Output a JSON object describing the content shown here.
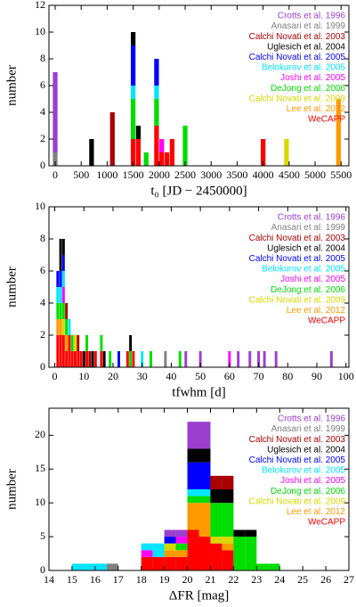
{
  "chart_data": [
    {
      "type": "bar",
      "stacked": true,
      "xlabel": "t₀ [JD − 2450000]",
      "ylabel": "number",
      "x": [
        0,
        700,
        1100,
        1500,
        1600,
        1750,
        1950,
        2050,
        2150,
        2250,
        2500,
        4000,
        4450,
        5450
      ],
      "xlim": [
        -120,
        5650
      ],
      "xticks": [
        0,
        500,
        1000,
        1500,
        2000,
        2500,
        3000,
        3500,
        4000,
        4500,
        5000,
        5500
      ],
      "ylim": [
        0,
        12
      ],
      "yticks": [
        0,
        2,
        4,
        6,
        8,
        10,
        12
      ],
      "series": [
        {
          "name": "Crotts et al. 1996",
          "color": "#9a3fd0",
          "values": [
            6,
            0,
            0,
            0,
            0,
            0,
            0,
            0,
            0,
            0,
            0,
            0,
            0,
            0
          ]
        },
        {
          "name": "Anasari et al. 1999",
          "color": "#808080",
          "values": [
            1,
            0,
            0,
            0,
            0,
            0,
            0,
            0,
            0,
            0,
            0,
            0,
            0,
            0
          ]
        },
        {
          "name": "Calchi Novati et al. 2003",
          "color": "#aa0000",
          "values": [
            0,
            0,
            4,
            0,
            0,
            0,
            0,
            0,
            0,
            0,
            0,
            0,
            0,
            0
          ]
        },
        {
          "name": "Uglesich et al. 2004",
          "color": "#000000",
          "values": [
            0,
            2,
            0,
            1,
            1,
            0,
            0,
            0,
            0,
            0,
            0,
            0,
            0,
            0
          ]
        },
        {
          "name": "Calchi Novati et al. 2005",
          "color": "#0000ff",
          "values": [
            0,
            0,
            0,
            3,
            0,
            0,
            2,
            0,
            0,
            0,
            0,
            0,
            0,
            0
          ]
        },
        {
          "name": "Belokurov et al. 2005",
          "color": "#00e5ff",
          "values": [
            0,
            0,
            0,
            1,
            0,
            0,
            1,
            0,
            0,
            0,
            0,
            0,
            0,
            0
          ]
        },
        {
          "name": "Joshi et al. 2005",
          "color": "#ff00ff",
          "values": [
            0,
            0,
            0,
            0,
            0,
            0,
            0,
            1,
            0,
            0,
            0,
            0,
            0,
            0
          ]
        },
        {
          "name": "DeJong et al. 2006",
          "color": "#00dd00",
          "values": [
            0,
            0,
            0,
            3,
            0,
            1,
            2,
            0,
            0,
            0,
            3,
            0,
            0,
            0
          ]
        },
        {
          "name": "Calchi Novati et al. 2009",
          "color": "#d8d800",
          "values": [
            0,
            0,
            0,
            0,
            0,
            0,
            0,
            0,
            0,
            0,
            0,
            0,
            2,
            0
          ]
        },
        {
          "name": "Lee et al. 2012",
          "color": "#ff9900",
          "values": [
            0,
            0,
            0,
            0,
            0,
            0,
            0,
            0,
            0,
            0,
            0,
            0,
            0,
            5
          ]
        },
        {
          "name": "WeCAPP",
          "color": "#ff0000",
          "values": [
            0,
            0,
            0,
            2,
            2,
            0,
            3,
            1,
            1,
            2,
            0,
            2,
            0,
            0
          ]
        }
      ]
    },
    {
      "type": "bar",
      "stacked": true,
      "xlabel": "tfwhm [d]",
      "ylabel": "number",
      "x": [
        1,
        2,
        3,
        4,
        5,
        6,
        7,
        8,
        9,
        10,
        11,
        12,
        13,
        14,
        16,
        17,
        19,
        22,
        25,
        26,
        27,
        30,
        33,
        38,
        43,
        45,
        50,
        60,
        63,
        67,
        70,
        72,
        76,
        95
      ],
      "xlim": [
        -2,
        101
      ],
      "xticks": [
        0,
        10,
        20,
        30,
        40,
        50,
        60,
        70,
        80,
        90,
        100
      ],
      "ylim": [
        0,
        10
      ],
      "yticks": [
        0,
        2,
        4,
        6,
        8,
        10
      ],
      "series": [
        {
          "name": "Crotts et al. 1996",
          "color": "#9a3fd0",
          "values": [
            0,
            0,
            0,
            0,
            0,
            0,
            0,
            0,
            0,
            0,
            0,
            0,
            0,
            0,
            0,
            0,
            0,
            0,
            0,
            0,
            0,
            0,
            0,
            0,
            0,
            1,
            1,
            0,
            1,
            1,
            1,
            1,
            1,
            1
          ]
        },
        {
          "name": "Anasari et al. 1999",
          "color": "#808080",
          "values": [
            0,
            0,
            0,
            0,
            0,
            0,
            0,
            0,
            0,
            0,
            0,
            0,
            0,
            0,
            0,
            0,
            0,
            0,
            0,
            0,
            0,
            0,
            0,
            1,
            0,
            0,
            0,
            0,
            0,
            0,
            0,
            0,
            0,
            0
          ]
        },
        {
          "name": "Calchi Novati et al. 2003",
          "color": "#aa0000",
          "values": [
            0,
            0,
            0,
            1,
            0,
            0,
            0,
            1,
            0,
            0,
            0,
            1,
            0,
            0,
            0,
            0,
            0,
            0,
            0,
            0,
            0,
            0,
            0,
            0,
            0,
            0,
            0,
            0,
            0,
            0,
            0,
            0,
            0,
            0
          ]
        },
        {
          "name": "Uglesich et al. 2004",
          "color": "#000000",
          "values": [
            0,
            2,
            1,
            0,
            0,
            0,
            0,
            0,
            0,
            1,
            0,
            0,
            1,
            0,
            0,
            1,
            0,
            0,
            0,
            1,
            0,
            0,
            0,
            0,
            0,
            0,
            0,
            0,
            0,
            0,
            0,
            0,
            0,
            0
          ]
        },
        {
          "name": "Calchi Novati et al. 2005",
          "color": "#0000ff",
          "values": [
            1,
            1,
            1,
            0,
            0,
            0,
            0,
            0,
            0,
            0,
            0,
            0,
            0,
            0,
            0,
            0,
            0,
            1,
            0,
            0,
            0,
            0,
            0,
            0,
            0,
            0,
            0,
            0,
            0,
            0,
            0,
            0,
            0,
            0
          ]
        },
        {
          "name": "Belokurov et al. 2005",
          "color": "#00e5ff",
          "values": [
            1,
            1,
            1,
            0,
            1,
            0,
            0,
            0,
            0,
            0,
            0,
            0,
            0,
            0,
            0,
            0,
            0,
            0,
            0,
            0,
            0,
            1,
            0,
            0,
            0,
            0,
            0,
            0,
            0,
            0,
            0,
            0,
            0,
            0
          ]
        },
        {
          "name": "Joshi et al. 2005",
          "color": "#ff00ff",
          "values": [
            0,
            0,
            1,
            0,
            0,
            0,
            0,
            0,
            0,
            0,
            0,
            0,
            0,
            0,
            0,
            0,
            0,
            0,
            0,
            0,
            0,
            0,
            0,
            0,
            0,
            0,
            0,
            1,
            0,
            0,
            0,
            0,
            0,
            0
          ]
        },
        {
          "name": "DeJong et al. 2006",
          "color": "#00dd00",
          "values": [
            1,
            1,
            1,
            1,
            0,
            1,
            0,
            0,
            0,
            0,
            1,
            0,
            0,
            0,
            1,
            0,
            1,
            0,
            0,
            1,
            0,
            0,
            1,
            0,
            1,
            0,
            0,
            0,
            0,
            0,
            0,
            0,
            0,
            0
          ]
        },
        {
          "name": "Calchi Novati et al. 2009",
          "color": "#d8d800",
          "values": [
            0,
            0,
            1,
            0,
            0,
            0,
            1,
            0,
            0,
            0,
            0,
            0,
            0,
            0,
            0,
            0,
            0,
            0,
            0,
            0,
            0,
            0,
            0,
            0,
            0,
            0,
            0,
            0,
            0,
            0,
            0,
            0,
            0,
            0
          ]
        },
        {
          "name": "Lee et al. 2012",
          "color": "#ff9900",
          "values": [
            1,
            1,
            0,
            1,
            0,
            0,
            0,
            0,
            0,
            0,
            0,
            0,
            0,
            0,
            0,
            0,
            0,
            0,
            0,
            0,
            0,
            0,
            0,
            0,
            0,
            0,
            0,
            0,
            0,
            0,
            0,
            0,
            0,
            0
          ]
        },
        {
          "name": "WeCAPP",
          "color": "#ff0000",
          "values": [
            2,
            2,
            2,
            1,
            2,
            1,
            1,
            1,
            1,
            0,
            1,
            0,
            0,
            1,
            1,
            0,
            0,
            0,
            1,
            0,
            1,
            0,
            0,
            0,
            0,
            0,
            0,
            0,
            0,
            0,
            0,
            0,
            0,
            0
          ]
        }
      ]
    },
    {
      "type": "histogram",
      "stacked": true,
      "xlabel": "ΔFR [mag]",
      "ylabel": "number",
      "bins": [
        15,
        15.5,
        16,
        16.5,
        17,
        17.5,
        18,
        18.5,
        19,
        19.5,
        20,
        20.5,
        21,
        21.5,
        22,
        22.5,
        23,
        23.5,
        24
      ],
      "xlim": [
        14,
        27
      ],
      "xticks": [
        14,
        15,
        16,
        17,
        18,
        19,
        20,
        21,
        22,
        23,
        24,
        25,
        26,
        27
      ],
      "ylim": [
        0,
        24
      ],
      "yticks": [
        0,
        5,
        10,
        15,
        20
      ],
      "series": [
        {
          "name": "Crotts et al. 1996",
          "color": "#9a3fd0",
          "values": [
            0,
            0,
            0,
            0,
            0,
            0,
            0,
            0,
            1,
            1,
            4,
            4,
            0,
            0,
            0,
            0,
            0,
            0
          ]
        },
        {
          "name": "Anasari et al. 1999",
          "color": "#808080",
          "values": [
            0,
            0,
            0,
            1,
            0,
            0,
            0,
            0,
            0,
            0,
            0,
            0,
            0,
            0,
            0,
            0,
            0,
            0
          ]
        },
        {
          "name": "Calchi Novati et al. 2003",
          "color": "#aa0000",
          "values": [
            0,
            0,
            0,
            0,
            0,
            0,
            0,
            0,
            0,
            0,
            0,
            0,
            2,
            2,
            0,
            0,
            0,
            0
          ]
        },
        {
          "name": "Uglesich et al. 2004",
          "color": "#000000",
          "values": [
            0,
            0,
            0,
            0,
            0,
            0,
            0,
            0,
            0,
            0,
            2,
            2,
            2,
            2,
            1,
            1,
            0,
            0
          ]
        },
        {
          "name": "Calchi Novati et al. 2005",
          "color": "#0000ff",
          "values": [
            0,
            0,
            0,
            0,
            0,
            0,
            0,
            0,
            1,
            0,
            4,
            4,
            0,
            0,
            0,
            0,
            0,
            0
          ]
        },
        {
          "name": "Belokurov et al. 2005",
          "color": "#00e5ff",
          "values": [
            1,
            1,
            1,
            0,
            0,
            0,
            1,
            2,
            0,
            0,
            1,
            1,
            0,
            0,
            0,
            0,
            0,
            0
          ]
        },
        {
          "name": "Joshi et al. 2005",
          "color": "#ff00ff",
          "values": [
            0,
            0,
            0,
            0,
            0,
            0,
            1,
            0,
            0,
            1,
            0,
            0,
            0,
            0,
            0,
            0,
            0,
            0
          ]
        },
        {
          "name": "DeJong et al. 2006",
          "color": "#00dd00",
          "values": [
            0,
            0,
            0,
            0,
            0,
            0,
            0,
            0,
            0,
            1,
            1,
            1,
            5,
            5,
            5,
            5,
            1,
            1
          ]
        },
        {
          "name": "Calchi Novati et al. 2009",
          "color": "#d8d800",
          "values": [
            0,
            0,
            0,
            0,
            0,
            0,
            0,
            0,
            1,
            0,
            0,
            0,
            1,
            1,
            0,
            0,
            0,
            0
          ]
        },
        {
          "name": "Lee et al. 2012",
          "color": "#ff9900",
          "values": [
            0,
            0,
            0,
            0,
            0,
            0,
            0,
            0,
            1,
            1,
            4,
            5,
            0,
            1,
            0,
            0,
            0,
            0
          ]
        },
        {
          "name": "WeCAPP",
          "color": "#ff0000",
          "values": [
            0,
            0,
            0,
            0,
            0,
            0,
            2,
            2,
            2,
            2,
            6,
            5,
            4,
            3,
            0,
            0,
            0,
            0
          ]
        }
      ]
    }
  ]
}
